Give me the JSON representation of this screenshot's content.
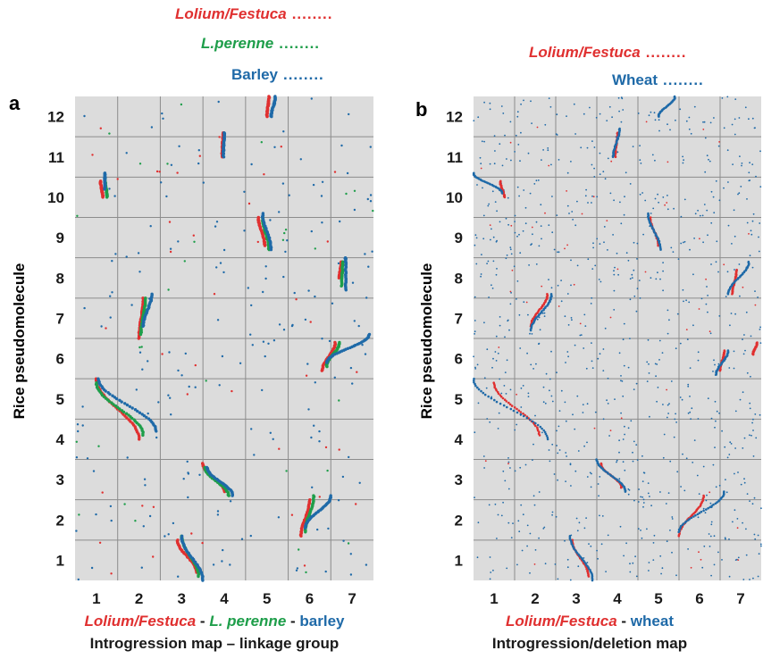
{
  "colors": {
    "lolium": "#e03030",
    "perenne": "#1e9e4a",
    "barley": "#1f6aa8",
    "wheat": "#1f6aa8",
    "panel_bg": "#dcdcdc",
    "grid": "#8c8c8c",
    "text": "#1a1a1a"
  },
  "panel_a": {
    "letter": "a",
    "legend": [
      {
        "name": "Lolium/Festuca",
        "dots": "........",
        "color": "#e03030",
        "italic": true
      },
      {
        "name": "L.perenne",
        "dots": "........",
        "color": "#1e9e4a",
        "italic": true
      },
      {
        "name": "Barley",
        "dots": "........",
        "color": "#1f6aa8",
        "italic": false
      }
    ],
    "ylabel": "Rice pseudomolecule",
    "caption_parts": [
      {
        "text": "Lolium/Festuca",
        "color": "#e03030",
        "italic": true
      },
      {
        "text": " - ",
        "color": "#1a1a1a",
        "italic": false
      },
      {
        "text": "L. perenne",
        "color": "#1e9e4a",
        "italic": true
      },
      {
        "text": " - ",
        "color": "#1a1a1a",
        "italic": false
      },
      {
        "text": "barley",
        "color": "#1f6aa8",
        "italic": false
      }
    ],
    "caption2": "Introgression map – linkage group"
  },
  "panel_b": {
    "letter": "b",
    "legend": [
      {
        "name": "Lolium/Festuca",
        "dots": "........",
        "color": "#e03030",
        "italic": true
      },
      {
        "name": "Wheat",
        "dots": "........",
        "color": "#1f6aa8",
        "italic": false
      }
    ],
    "ylabel": "Rice pseudomolecule",
    "caption_parts": [
      {
        "text": "Lolium/Festuca",
        "color": "#e03030",
        "italic": true
      },
      {
        "text": " - ",
        "color": "#1a1a1a",
        "italic": false
      },
      {
        "text": "wheat",
        "color": "#1f6aa8",
        "italic": false
      }
    ],
    "caption2": "Introgression/deletion map"
  },
  "chart_data": [
    {
      "type": "scatter",
      "panel": "a",
      "title": "",
      "xlabel": "",
      "ylabel": "Rice pseudomolecule",
      "x_ticks": [
        "1",
        "2",
        "3",
        "4",
        "5",
        "6",
        "7"
      ],
      "y_ticks": [
        "1",
        "2",
        "3",
        "4",
        "5",
        "6",
        "7",
        "8",
        "9",
        "10",
        "11",
        "12"
      ],
      "xlim": [
        0.5,
        7.5
      ],
      "ylim": [
        0.5,
        12.5
      ],
      "grid": true,
      "series": [
        {
          "name": "Lolium/Festuca",
          "color": "#e03030",
          "segments": [
            {
              "from": [
                1.1,
                10.4
              ],
              "to": [
                1.15,
                10.0
              ]
            },
            {
              "from": [
                1.0,
                5.5
              ],
              "to": [
                2.0,
                4.0
              ]
            },
            {
              "from": [
                2.0,
                6.5
              ],
              "to": [
                2.1,
                7.5
              ]
            },
            {
              "from": [
                3.5,
                3.4
              ],
              "to": [
                4.0,
                2.7
              ]
            },
            {
              "from": [
                2.9,
                1.5
              ],
              "to": [
                3.35,
                0.7
              ]
            },
            {
              "from": [
                3.95,
                11.0
              ],
              "to": [
                3.97,
                11.6
              ]
            },
            {
              "from": [
                4.8,
                9.5
              ],
              "to": [
                4.95,
                8.8
              ]
            },
            {
              "from": [
                5.0,
                12.0
              ],
              "to": [
                5.05,
                12.5
              ]
            },
            {
              "from": [
                5.8,
                1.6
              ],
              "to": [
                6.0,
                2.5
              ]
            },
            {
              "from": [
                6.3,
                5.7
              ],
              "to": [
                6.6,
                6.4
              ]
            },
            {
              "from": [
                6.7,
                8.0
              ],
              "to": [
                6.75,
                8.4
              ]
            }
          ]
        },
        {
          "name": "L.perenne",
          "color": "#1e9e4a",
          "segments": [
            {
              "from": [
                1.2,
                10.5
              ],
              "to": [
                1.25,
                10.0
              ]
            },
            {
              "from": [
                1.0,
                5.4
              ],
              "to": [
                2.1,
                4.1
              ]
            },
            {
              "from": [
                2.05,
                6.6
              ],
              "to": [
                2.15,
                7.5
              ]
            },
            {
              "from": [
                3.55,
                3.3
              ],
              "to": [
                4.1,
                2.6
              ]
            },
            {
              "from": [
                3.0,
                1.6
              ],
              "to": [
                3.4,
                0.6
              ]
            },
            {
              "from": [
                4.9,
                9.5
              ],
              "to": [
                5.05,
                8.7
              ]
            },
            {
              "from": [
                5.9,
                1.7
              ],
              "to": [
                6.1,
                2.6
              ]
            },
            {
              "from": [
                6.4,
                5.8
              ],
              "to": [
                6.7,
                6.4
              ]
            },
            {
              "from": [
                6.75,
                7.8
              ],
              "to": [
                6.78,
                8.4
              ]
            }
          ]
        },
        {
          "name": "Barley",
          "color": "#1f6aa8",
          "segments": [
            {
              "from": [
                1.2,
                10.6
              ],
              "to": [
                1.2,
                10.2
              ]
            },
            {
              "from": [
                1.05,
                5.5
              ],
              "to": [
                2.4,
                4.2
              ]
            },
            {
              "from": [
                2.1,
                6.8
              ],
              "to": [
                2.3,
                7.6
              ]
            },
            {
              "from": [
                3.6,
                3.3
              ],
              "to": [
                4.2,
                2.6
              ]
            },
            {
              "from": [
                3.0,
                1.6
              ],
              "to": [
                3.5,
                0.5
              ]
            },
            {
              "from": [
                3.98,
                11.0
              ],
              "to": [
                4.0,
                11.6
              ]
            },
            {
              "from": [
                4.9,
                9.6
              ],
              "to": [
                5.1,
                8.7
              ]
            },
            {
              "from": [
                5.1,
                12.0
              ],
              "to": [
                5.2,
                12.5
              ]
            },
            {
              "from": [
                5.9,
                1.8
              ],
              "to": [
                6.5,
                2.6
              ]
            },
            {
              "from": [
                6.4,
                5.9
              ],
              "to": [
                7.4,
                6.6
              ]
            },
            {
              "from": [
                6.85,
                7.7
              ],
              "to": [
                6.85,
                8.5
              ]
            }
          ]
        }
      ]
    },
    {
      "type": "scatter",
      "panel": "b",
      "title": "",
      "xlabel": "",
      "ylabel": "Rice pseudomolecule",
      "x_ticks": [
        "1",
        "2",
        "3",
        "4",
        "5",
        "6",
        "7"
      ],
      "y_ticks": [
        "1",
        "2",
        "3",
        "4",
        "5",
        "6",
        "7",
        "8",
        "9",
        "10",
        "11",
        "12"
      ],
      "xlim": [
        0.5,
        7.5
      ],
      "ylim": [
        0.5,
        12.5
      ],
      "grid": true,
      "series": [
        {
          "name": "Lolium/Festuca",
          "color": "#e03030",
          "segments": [
            {
              "from": [
                1.15,
                10.4
              ],
              "to": [
                1.25,
                10.0
              ]
            },
            {
              "from": [
                1.0,
                5.4
              ],
              "to": [
                2.1,
                4.1
              ]
            },
            {
              "from": [
                1.9,
                6.8
              ],
              "to": [
                2.3,
                7.6
              ]
            },
            {
              "from": [
                3.6,
                3.4
              ],
              "to": [
                4.1,
                2.8
              ]
            },
            {
              "from": [
                2.9,
                1.5
              ],
              "to": [
                3.3,
                0.6
              ]
            },
            {
              "from": [
                3.95,
                11.0
              ],
              "to": [
                4.0,
                11.6
              ]
            },
            {
              "from": [
                4.8,
                9.5
              ],
              "to": [
                5.0,
                8.8
              ]
            },
            {
              "from": [
                5.5,
                1.6
              ],
              "to": [
                6.1,
                2.6
              ]
            },
            {
              "from": [
                6.5,
                5.7
              ],
              "to": [
                6.6,
                6.2
              ]
            },
            {
              "from": [
                7.3,
                6.1
              ],
              "to": [
                7.4,
                6.4
              ]
            },
            {
              "from": [
                6.8,
                7.6
              ],
              "to": [
                6.9,
                8.2
              ]
            }
          ]
        },
        {
          "name": "Wheat",
          "color": "#1f6aa8",
          "segments": [
            {
              "from": [
                0.5,
                10.6
              ],
              "to": [
                1.2,
                10.1
              ]
            },
            {
              "from": [
                0.5,
                5.5
              ],
              "to": [
                2.3,
                4.0
              ]
            },
            {
              "from": [
                1.9,
                6.7
              ],
              "to": [
                2.4,
                7.6
              ]
            },
            {
              "from": [
                3.5,
                3.5
              ],
              "to": [
                4.2,
                2.7
              ]
            },
            {
              "from": [
                2.85,
                1.6
              ],
              "to": [
                3.4,
                0.5
              ]
            },
            {
              "from": [
                3.9,
                11.0
              ],
              "to": [
                4.05,
                11.7
              ]
            },
            {
              "from": [
                4.75,
                9.6
              ],
              "to": [
                5.05,
                8.7
              ]
            },
            {
              "from": [
                5.0,
                12.0
              ],
              "to": [
                5.4,
                12.5
              ]
            },
            {
              "from": [
                5.5,
                1.7
              ],
              "to": [
                6.6,
                2.7
              ]
            },
            {
              "from": [
                6.4,
                5.6
              ],
              "to": [
                6.7,
                6.2
              ]
            },
            {
              "from": [
                6.7,
                7.6
              ],
              "to": [
                7.2,
                8.4
              ]
            }
          ]
        }
      ]
    }
  ]
}
